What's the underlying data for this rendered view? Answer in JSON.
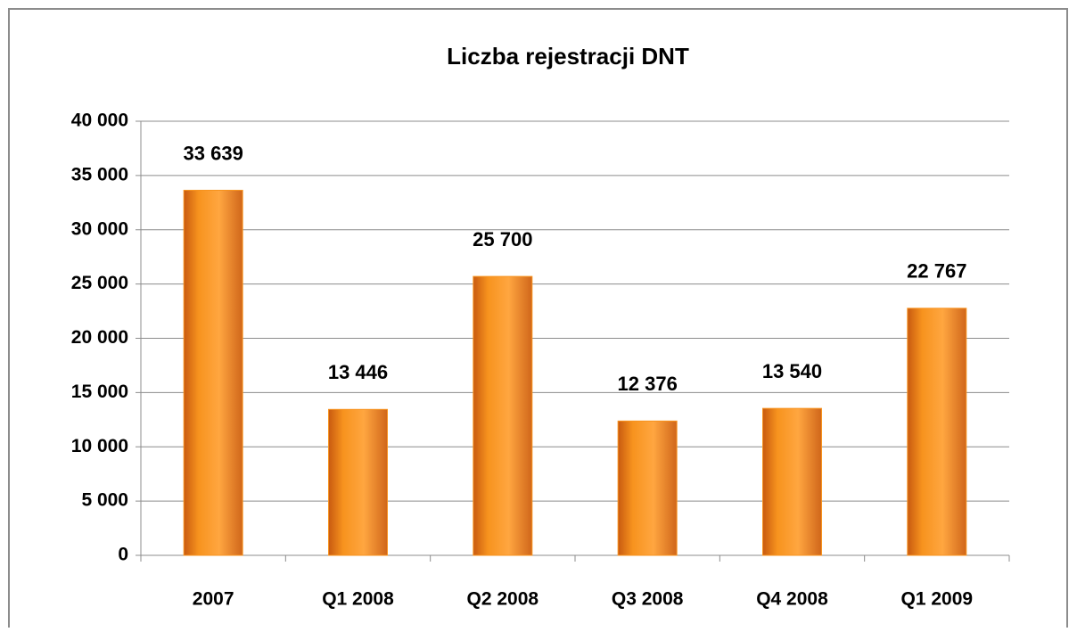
{
  "chart_data": {
    "type": "bar",
    "title": "Liczba rejestracji DNT",
    "categories": [
      "2007",
      "Q1 2008",
      "Q2 2008",
      "Q3 2008",
      "Q4 2008",
      "Q1 2009"
    ],
    "values": [
      33639,
      13446,
      25700,
      12376,
      13540,
      22767
    ],
    "value_labels": [
      "33 639",
      "13 446",
      "25 700",
      "12 376",
      "13 540",
      "22 767"
    ],
    "color": "#f7931e",
    "ylim": [
      0,
      40000
    ],
    "yticks": [
      0,
      {
        "value": 5000,
        "label": "5 000"
      },
      {
        "value": 10000,
        "label": "10 000"
      },
      {
        "value": 15000,
        "label": "15 000"
      },
      {
        "value": 20000,
        "label": "20 000"
      },
      {
        "value": 25000,
        "label": "25 000"
      },
      {
        "value": 30000,
        "label": "30 000"
      },
      {
        "value": 35000,
        "label": "35 000"
      },
      {
        "value": 40000,
        "label": "40 000"
      }
    ],
    "grid": true
  }
}
